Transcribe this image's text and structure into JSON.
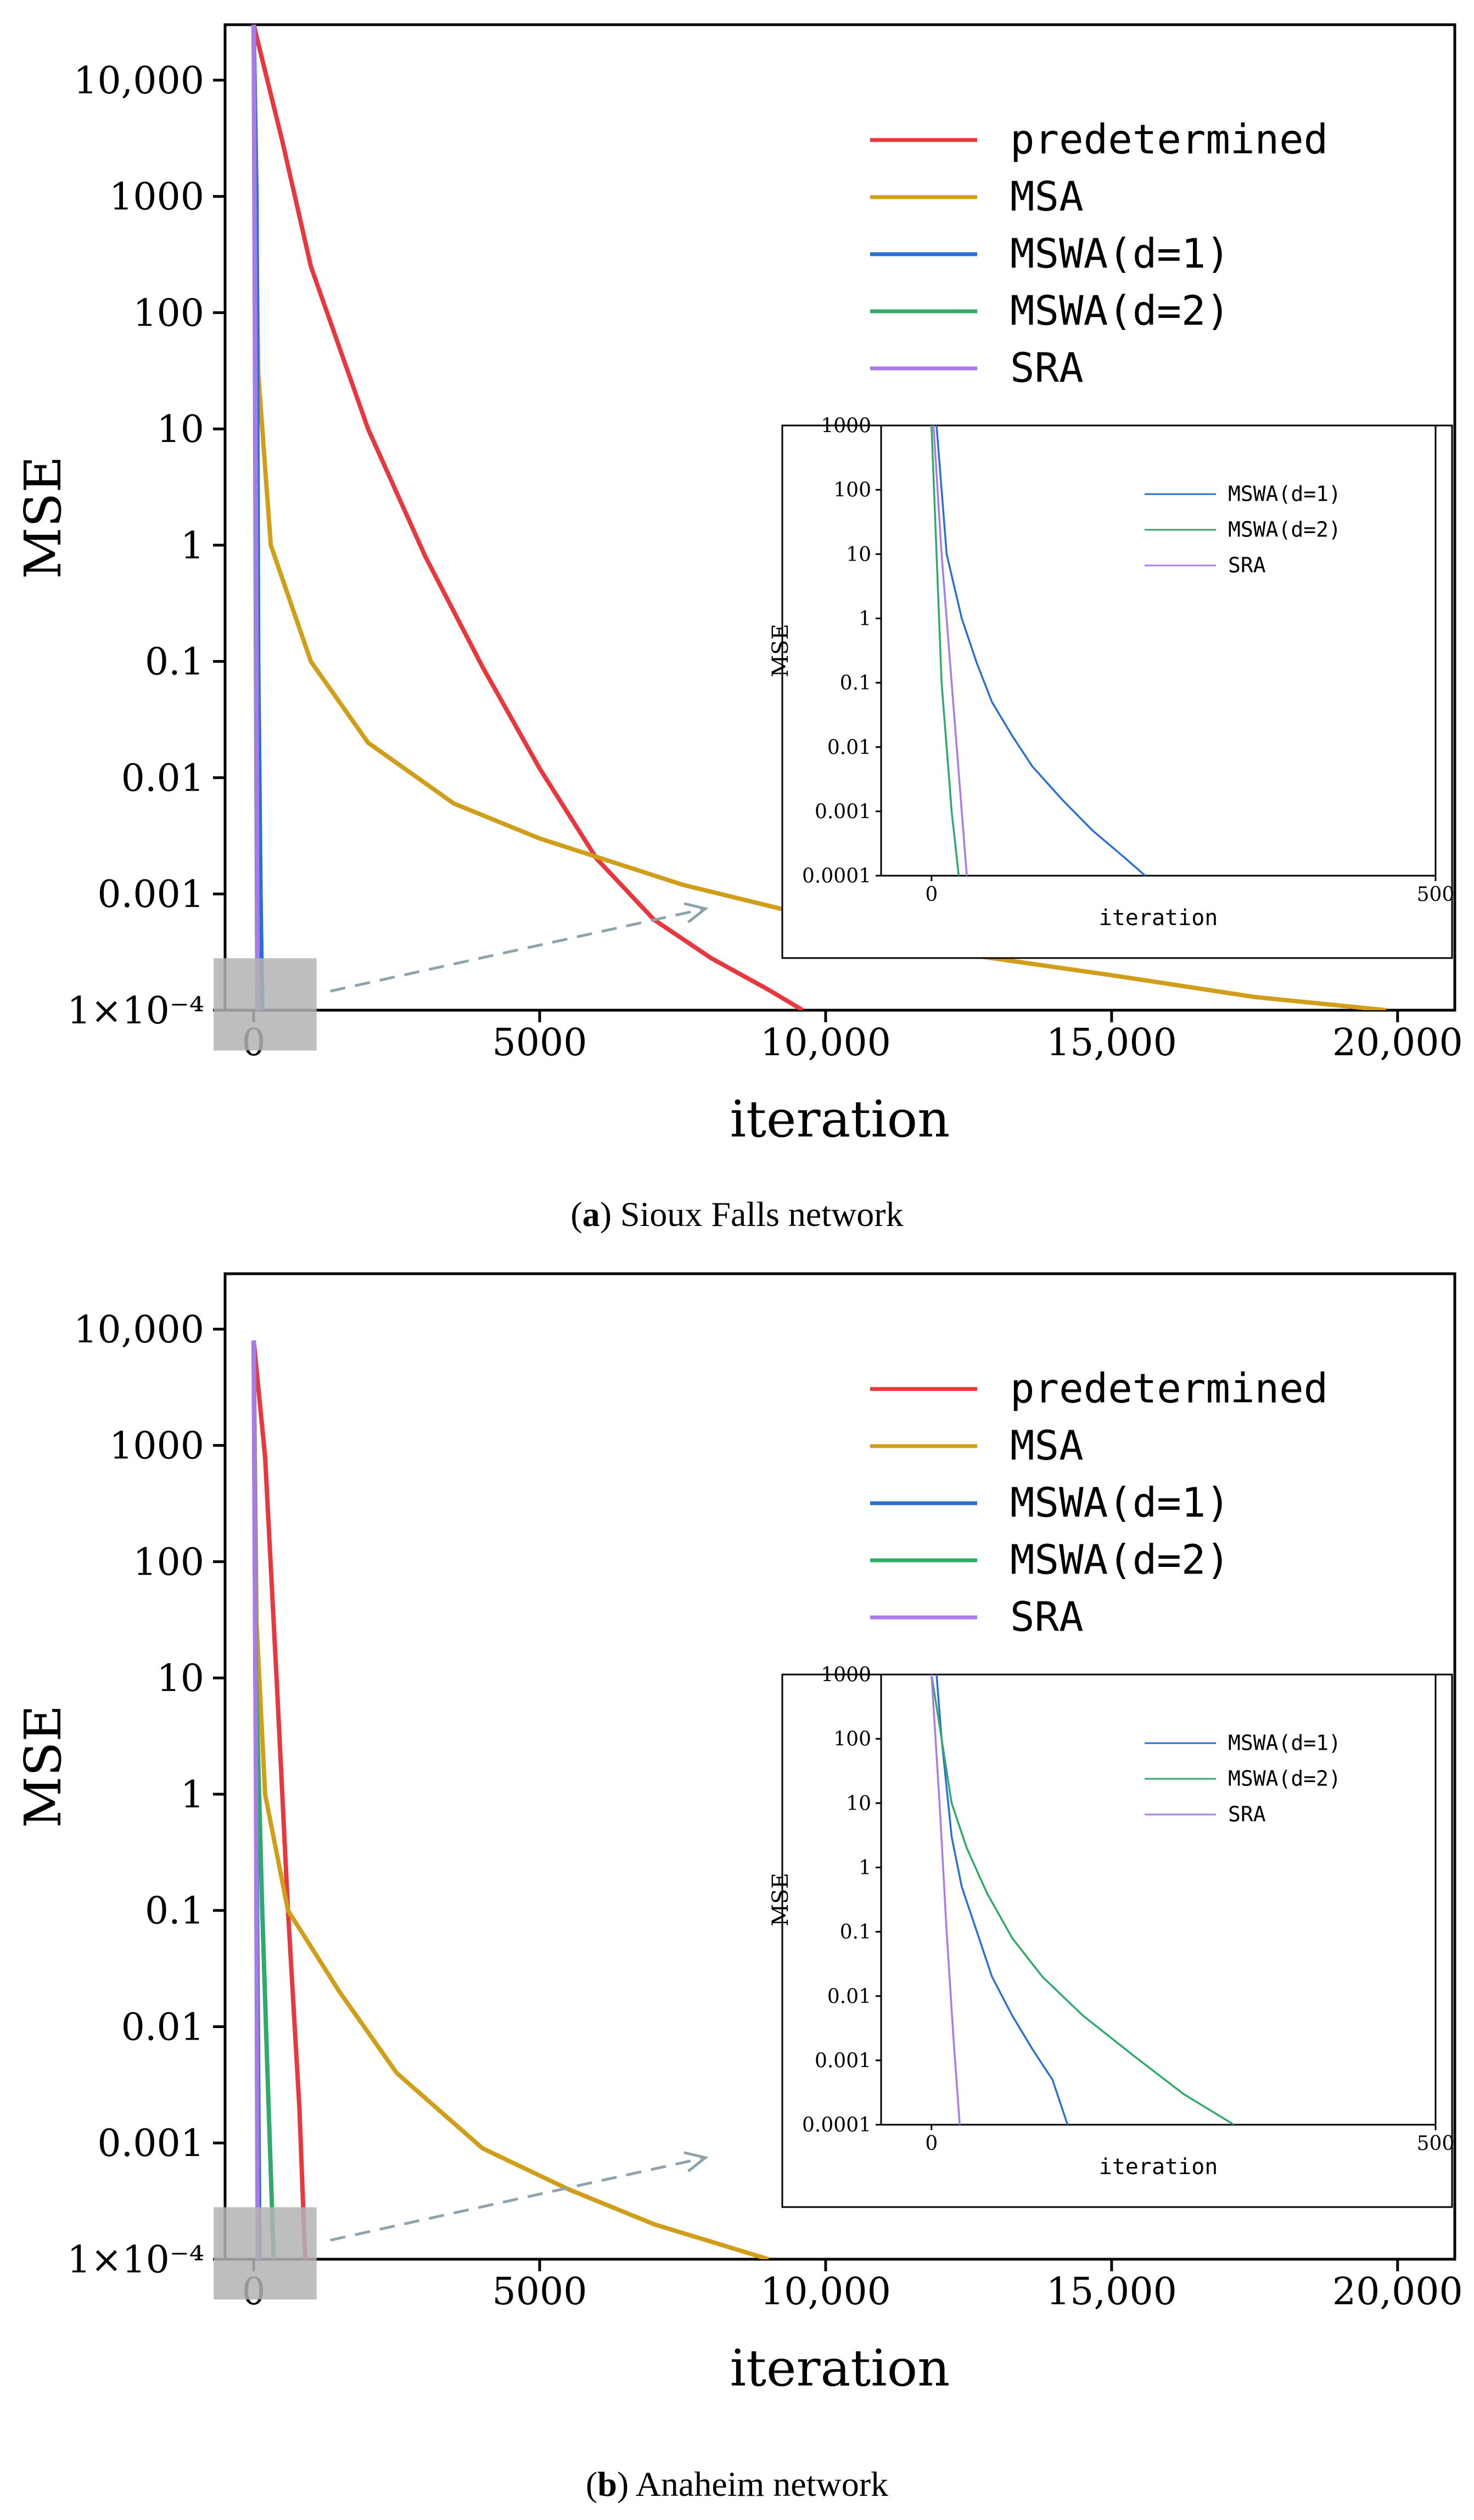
{
  "figure": {
    "captions": [
      {
        "prefix": "(",
        "letter": "a",
        "rest": ") Sioux Falls network"
      },
      {
        "prefix": "(",
        "letter": "b",
        "rest": ") Anaheim network"
      }
    ]
  },
  "colors": {
    "predetermined": "#e8383d",
    "MSA": "#d19e1a",
    "MSWA_d1": "#2a6fd6",
    "MSWA_d2": "#2eaa6a",
    "SRA": "#a97be8",
    "connector": "#8fa3ad",
    "highlight": "#b3b3b3"
  },
  "chart_data": [
    {
      "type": "line",
      "name": "sioux-falls-main",
      "title": "",
      "xlabel": "iteration",
      "ylabel": "MSE",
      "yscale": "log",
      "xlim": [
        -500,
        21000
      ],
      "ylim": [
        0.0001,
        30000
      ],
      "xticks": [
        0,
        5000,
        10000,
        15000,
        20000
      ],
      "xtick_labels": [
        "0",
        "5000",
        "10,000",
        "15,000",
        "20,000"
      ],
      "yticks": [
        0.0001,
        0.001,
        0.01,
        0.1,
        1,
        10,
        100,
        1000,
        10000
      ],
      "ytick_labels": [
        "1×10⁻⁴",
        "0.001",
        "0.01",
        "0.1",
        "1",
        "10",
        "100",
        "1000",
        "10,000"
      ],
      "legend": [
        "predetermined",
        "MSA",
        "MSWA(d=1)",
        "MSWA(d=2)",
        "SRA"
      ],
      "legend_position": "top-right",
      "series": [
        {
          "name": "predetermined",
          "color_key": "predetermined",
          "points": [
            [
              0,
              30000
            ],
            [
              500,
              3000
            ],
            [
              1000,
              250
            ],
            [
              2000,
              10
            ],
            [
              3000,
              0.8
            ],
            [
              4000,
              0.09
            ],
            [
              5000,
              0.012
            ],
            [
              6000,
              0.002
            ],
            [
              7000,
              0.0006
            ],
            [
              8000,
              0.00028
            ],
            [
              9000,
              0.00015
            ],
            [
              9600,
              0.0001
            ]
          ]
        },
        {
          "name": "MSA",
          "color_key": "MSA",
          "points": [
            [
              0,
              30000
            ],
            [
              80,
              30
            ],
            [
              300,
              1
            ],
            [
              1000,
              0.1
            ],
            [
              2000,
              0.02
            ],
            [
              3500,
              0.006
            ],
            [
              5000,
              0.003
            ],
            [
              7500,
              0.0012
            ],
            [
              10000,
              0.0006
            ],
            [
              12500,
              0.0003
            ],
            [
              15000,
              0.0002
            ],
            [
              17500,
              0.00013
            ],
            [
              19800,
              0.0001
            ]
          ]
        },
        {
          "name": "MSWA(d=1)",
          "color_key": "MSWA_d1",
          "points": [
            [
              0,
              30000
            ],
            [
              50,
              1000
            ],
            [
              80,
              0.1
            ],
            [
              120,
              0.001
            ],
            [
              150,
              0.0001
            ]
          ]
        },
        {
          "name": "MSWA(d=2)",
          "color_key": "MSWA_d2",
          "points": [
            [
              0,
              30000
            ],
            [
              20,
              100
            ],
            [
              40,
              0.1
            ],
            [
              65,
              0.0001
            ]
          ]
        },
        {
          "name": "SRA",
          "color_key": "SRA",
          "points": [
            [
              0,
              30000
            ],
            [
              20,
              300
            ],
            [
              40,
              1
            ],
            [
              70,
              0.0001
            ]
          ]
        }
      ]
    },
    {
      "type": "line",
      "name": "sioux-falls-inset",
      "xlabel": "iteration",
      "ylabel": "MSE",
      "yscale": "log",
      "xlim": [
        -50,
        500
      ],
      "ylim": [
        0.0001,
        1000
      ],
      "xticks": [
        0,
        500
      ],
      "xtick_labels": [
        "0",
        "500"
      ],
      "yticks": [
        0.0001,
        0.001,
        0.01,
        0.1,
        1,
        10,
        100,
        1000
      ],
      "ytick_labels": [
        "0.0001",
        "0.001",
        "0.01",
        "0.1",
        "1",
        "10",
        "100",
        "1000"
      ],
      "legend": [
        "MSWA(d=1)",
        "MSWA(d=2)",
        "SRA"
      ],
      "series": [
        {
          "name": "MSWA(d=1)",
          "color_key": "MSWA_d1",
          "points": [
            [
              5,
              1000
            ],
            [
              15,
              10
            ],
            [
              30,
              1
            ],
            [
              45,
              0.2
            ],
            [
              60,
              0.05
            ],
            [
              80,
              0.015
            ],
            [
              100,
              0.005
            ],
            [
              130,
              0.0015
            ],
            [
              160,
              0.0005
            ],
            [
              190,
              0.0002
            ],
            [
              212,
              0.0001
            ]
          ]
        },
        {
          "name": "MSWA(d=2)",
          "color_key": "MSWA_d2",
          "points": [
            [
              0,
              1000
            ],
            [
              5,
              10
            ],
            [
              10,
              0.1
            ],
            [
              15,
              0.01
            ],
            [
              20,
              0.001
            ],
            [
              27,
              0.0001
            ]
          ]
        },
        {
          "name": "SRA",
          "color_key": "SRA",
          "points": [
            [
              2,
              1000
            ],
            [
              10,
              10
            ],
            [
              20,
              0.1
            ],
            [
              30,
              0.001
            ],
            [
              35,
              0.0001
            ]
          ]
        }
      ]
    },
    {
      "type": "line",
      "name": "anaheim-main",
      "title": "",
      "xlabel": "iteration",
      "ylabel": "MSE",
      "yscale": "log",
      "xlim": [
        -500,
        21000
      ],
      "ylim": [
        0.0001,
        30000
      ],
      "xticks": [
        0,
        5000,
        10000,
        15000,
        20000
      ],
      "xtick_labels": [
        "0",
        "5000",
        "10,000",
        "15,000",
        "20,000"
      ],
      "yticks": [
        0.0001,
        0.001,
        0.01,
        0.1,
        1,
        10,
        100,
        1000,
        10000
      ],
      "ytick_labels": [
        "1×10⁻⁴",
        "0.001",
        "0.01",
        "0.1",
        "1",
        "10",
        "100",
        "1000",
        "10,000"
      ],
      "legend": [
        "predetermined",
        "MSA",
        "MSWA(d=1)",
        "MSWA(d=2)",
        "SRA"
      ],
      "legend_position": "top-right",
      "series": [
        {
          "name": "predetermined",
          "color_key": "predetermined",
          "points": [
            [
              0,
              8000
            ],
            [
              200,
              800
            ],
            [
              400,
              10
            ],
            [
              600,
              0.1
            ],
            [
              800,
              0.002
            ],
            [
              900,
              0.0001
            ]
          ]
        },
        {
          "name": "MSA",
          "color_key": "MSA",
          "points": [
            [
              0,
              8000
            ],
            [
              50,
              30
            ],
            [
              200,
              1
            ],
            [
              600,
              0.1
            ],
            [
              1500,
              0.02
            ],
            [
              2500,
              0.004
            ],
            [
              4000,
              0.0009
            ],
            [
              5500,
              0.0004
            ],
            [
              7000,
              0.0002
            ],
            [
              9000,
              0.0001
            ]
          ]
        },
        {
          "name": "MSWA(d=1)",
          "color_key": "MSWA_d1",
          "points": [
            [
              0,
              8000
            ],
            [
              30,
              10
            ],
            [
              60,
              0.1
            ],
            [
              100,
              0.0001
            ]
          ]
        },
        {
          "name": "MSWA(d=2)",
          "color_key": "MSWA_d2",
          "points": [
            [
              0,
              8000
            ],
            [
              40,
              10
            ],
            [
              150,
              0.1
            ],
            [
              250,
              0.003
            ],
            [
              350,
              0.0001
            ]
          ]
        },
        {
          "name": "SRA",
          "color_key": "SRA",
          "points": [
            [
              0,
              8000
            ],
            [
              20,
              100
            ],
            [
              40,
              1
            ],
            [
              70,
              0.0001
            ]
          ]
        }
      ]
    },
    {
      "type": "line",
      "name": "anaheim-inset",
      "xlabel": "iteration",
      "ylabel": "MSE",
      "yscale": "log",
      "xlim": [
        -50,
        500
      ],
      "ylim": [
        0.0001,
        1000
      ],
      "xticks": [
        0,
        500
      ],
      "xtick_labels": [
        "0",
        "500"
      ],
      "yticks": [
        0.0001,
        0.001,
        0.01,
        0.1,
        1,
        10,
        100,
        1000
      ],
      "ytick_labels": [
        "0.0001",
        "0.001",
        "0.01",
        "0.1",
        "1",
        "10",
        "100",
        "1000"
      ],
      "legend": [
        "MSWA(d=1)",
        "MSWA(d=2)",
        "SRA"
      ],
      "series": [
        {
          "name": "MSWA(d=1)",
          "color_key": "MSWA_d1",
          "points": [
            [
              5,
              1000
            ],
            [
              10,
              100
            ],
            [
              20,
              3
            ],
            [
              30,
              0.5
            ],
            [
              45,
              0.1
            ],
            [
              60,
              0.02
            ],
            [
              80,
              0.005
            ],
            [
              100,
              0.0015
            ],
            [
              120,
              0.0005
            ],
            [
              135,
              0.0001
            ]
          ]
        },
        {
          "name": "MSWA(d=2)",
          "color_key": "MSWA_d2",
          "points": [
            [
              0,
              1000
            ],
            [
              10,
              100
            ],
            [
              20,
              10
            ],
            [
              35,
              2
            ],
            [
              55,
              0.4
            ],
            [
              80,
              0.08
            ],
            [
              110,
              0.02
            ],
            [
              150,
              0.005
            ],
            [
              200,
              0.0012
            ],
            [
              250,
              0.0003
            ],
            [
              300,
              0.0001
            ]
          ]
        },
        {
          "name": "SRA",
          "color_key": "SRA",
          "points": [
            [
              0,
              1000
            ],
            [
              8,
              10
            ],
            [
              15,
              0.1
            ],
            [
              22,
              0.002
            ],
            [
              28,
              0.0001
            ]
          ]
        }
      ]
    }
  ]
}
